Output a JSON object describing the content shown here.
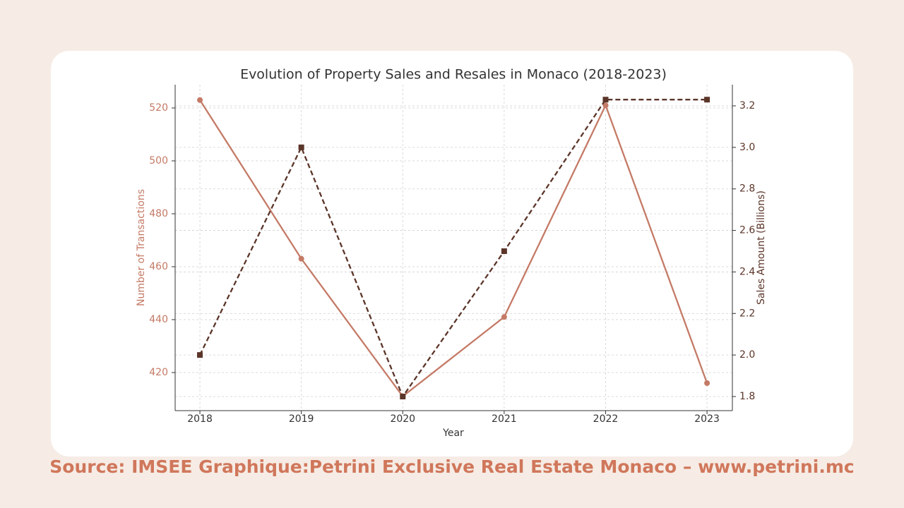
{
  "chart_data": {
    "type": "line",
    "title": "Evolution of Property Sales and Resales in Monaco (2018-2023)",
    "x_label": "Year",
    "y_label": "Number of Transactions",
    "y2_label": "Sales Amount (Billions)",
    "x": [
      2018,
      2019,
      2020,
      2021,
      2022,
      2023
    ],
    "xlim": [
      2017.756,
      2023.25
    ],
    "xticks": [
      2018,
      2019,
      2020,
      2021,
      2022,
      2023
    ],
    "ylim": [
      405.6,
      528.8
    ],
    "yticks": [
      420,
      440,
      460,
      480,
      500,
      520
    ],
    "y2lim": [
      1.732,
      3.302
    ],
    "y2ticks": [
      1.8,
      {
        "value": 2,
        "label": "2.0"
      },
      2.2,
      2.4,
      2.6,
      2.8,
      {
        "value": 3,
        "label": "3.0"
      },
      3.2
    ],
    "grid": true,
    "series": [
      {
        "color": "#c47a66",
        "values": [
          523,
          463,
          411,
          441,
          521,
          416
        ],
        "dashed": false,
        "marker": "circle"
      },
      {
        "color": "#5b3529",
        "values": [
          2.0,
          3.0,
          1.8,
          2.5,
          3.23,
          3.23
        ],
        "axis": "y2",
        "dashed": true,
        "marker": "square"
      }
    ]
  },
  "source": "Source: IMSEE Graphique:Petrini Exclusive Real Estate Monaco – www.petrini.mc"
}
